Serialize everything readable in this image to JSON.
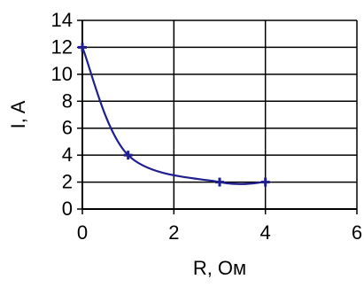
{
  "chart_data": {
    "type": "line",
    "title": "",
    "xlabel": "R, Ом",
    "ylabel": "I, A",
    "xlim": [
      0,
      6
    ],
    "ylim": [
      0,
      14
    ],
    "x_ticks": [
      "0",
      "2",
      "4",
      "6"
    ],
    "y_ticks": [
      "0",
      "2",
      "4",
      "6",
      "8",
      "10",
      "12",
      "14"
    ],
    "grid": true,
    "legend": "none",
    "series": [
      {
        "x": [
          0,
          1,
          3,
          4
        ],
        "values": [
          12,
          4,
          2,
          2
        ]
      }
    ],
    "colors": {
      "series": "#1f1f8f",
      "grid": "#000000",
      "axis": "#000000"
    }
  }
}
